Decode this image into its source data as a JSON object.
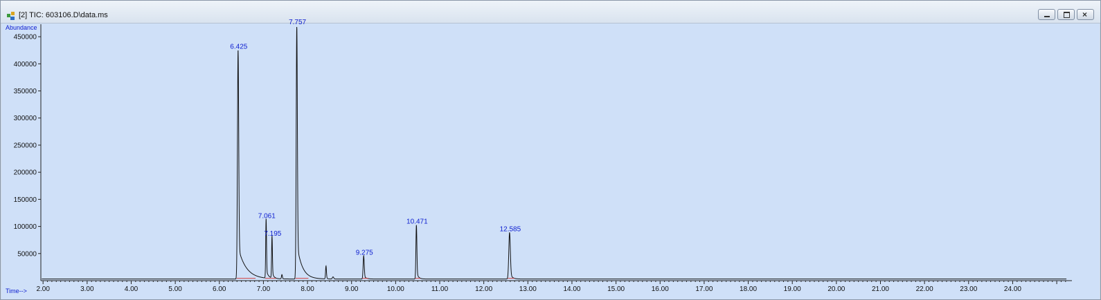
{
  "window": {
    "title": "[2] TIC: 603106.D\\data.ms",
    "icon": "chromatogram-app-icon",
    "buttons": [
      {
        "name": "minimize-button",
        "icon": "minimize-icon"
      },
      {
        "name": "maximize-button",
        "icon": "maximize-icon"
      },
      {
        "name": "close-button",
        "icon": "close-icon"
      }
    ]
  },
  "chart_data": {
    "type": "line",
    "title": "",
    "xlabel": "Time-->",
    "ylabel": "Abundance",
    "xlim": [
      1.95,
      25.25
    ],
    "ylim": [
      0,
      468000
    ],
    "x_ticks": [
      "2.00",
      "3.00",
      "4.00",
      "5.00",
      "6.00",
      "7.00",
      "8.00",
      "9.00",
      "10.00",
      "11.00",
      "12.00",
      "13.00",
      "14.00",
      "15.00",
      "16.00",
      "17.00",
      "18.00",
      "19.00",
      "20.00",
      "21.00",
      "22.00",
      "23.00",
      "24.00"
    ],
    "y_ticks": [
      "450000",
      "400000",
      "350000",
      "300000",
      "250000",
      "200000",
      "150000",
      "100000",
      "50000"
    ],
    "grid": false,
    "colors": {
      "trace": "#111111",
      "labels": "#1020d0",
      "baseline_marks": "#d04040",
      "background": "#cfe0f8"
    },
    "peaks": [
      {
        "rt": 6.425,
        "label": "6.425",
        "height": 423000,
        "width": 0.028,
        "tail": 0.18
      },
      {
        "rt": 7.061,
        "label": "7.061",
        "height": 110000,
        "width": 0.018,
        "tail": 0.05
      },
      {
        "rt": 7.195,
        "label": "7.195",
        "height": 78000,
        "width": 0.018,
        "tail": 0.04
      },
      {
        "rt": 7.757,
        "label": "7.757",
        "height": 468000,
        "width": 0.026,
        "tail": 0.12
      },
      {
        "rt": 9.275,
        "label": "9.275",
        "height": 43000,
        "width": 0.025,
        "tail": 0.05
      },
      {
        "rt": 10.471,
        "label": "10.471",
        "height": 100000,
        "width": 0.022,
        "tail": 0.04
      },
      {
        "rt": 12.585,
        "label": "12.585",
        "height": 86000,
        "width": 0.035,
        "tail": 0.05
      }
    ],
    "minor_peaks": [
      {
        "rt": 7.42,
        "height": 8000,
        "width": 0.02
      },
      {
        "rt": 8.42,
        "height": 24000,
        "width": 0.02
      },
      {
        "rt": 8.58,
        "height": 4000,
        "width": 0.03
      }
    ],
    "baseline": 3000
  }
}
